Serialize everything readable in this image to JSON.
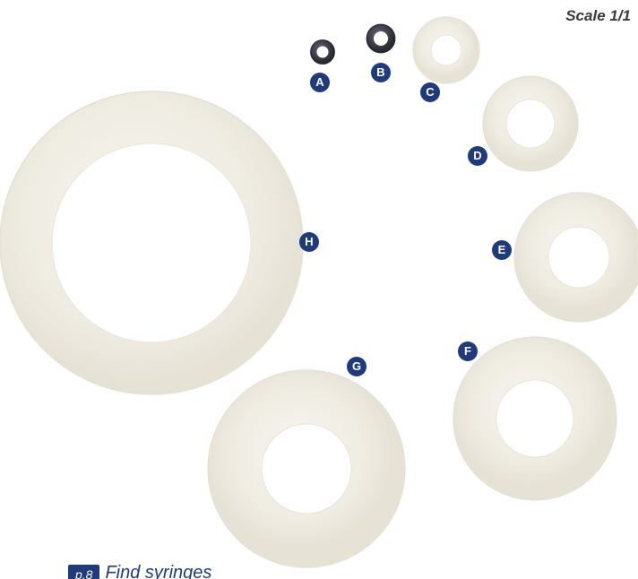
{
  "scale_label": "Scale 1/1",
  "washers": [
    {
      "label": "A",
      "material": "dark"
    },
    {
      "label": "B",
      "material": "dark"
    },
    {
      "label": "C",
      "material": "translucent"
    },
    {
      "label": "D",
      "material": "translucent"
    },
    {
      "label": "E",
      "material": "translucent"
    },
    {
      "label": "F",
      "material": "translucent"
    },
    {
      "label": "G",
      "material": "translucent"
    },
    {
      "label": "H",
      "material": "translucent"
    }
  ],
  "footer": {
    "page_tag": "p.8",
    "text": "Find syringes"
  },
  "colors": {
    "badge": "#1f3b7c",
    "washer_fill": "#f1efe6",
    "washer_edge": "#e2ded2",
    "dark_washer": "#3a3a44"
  }
}
